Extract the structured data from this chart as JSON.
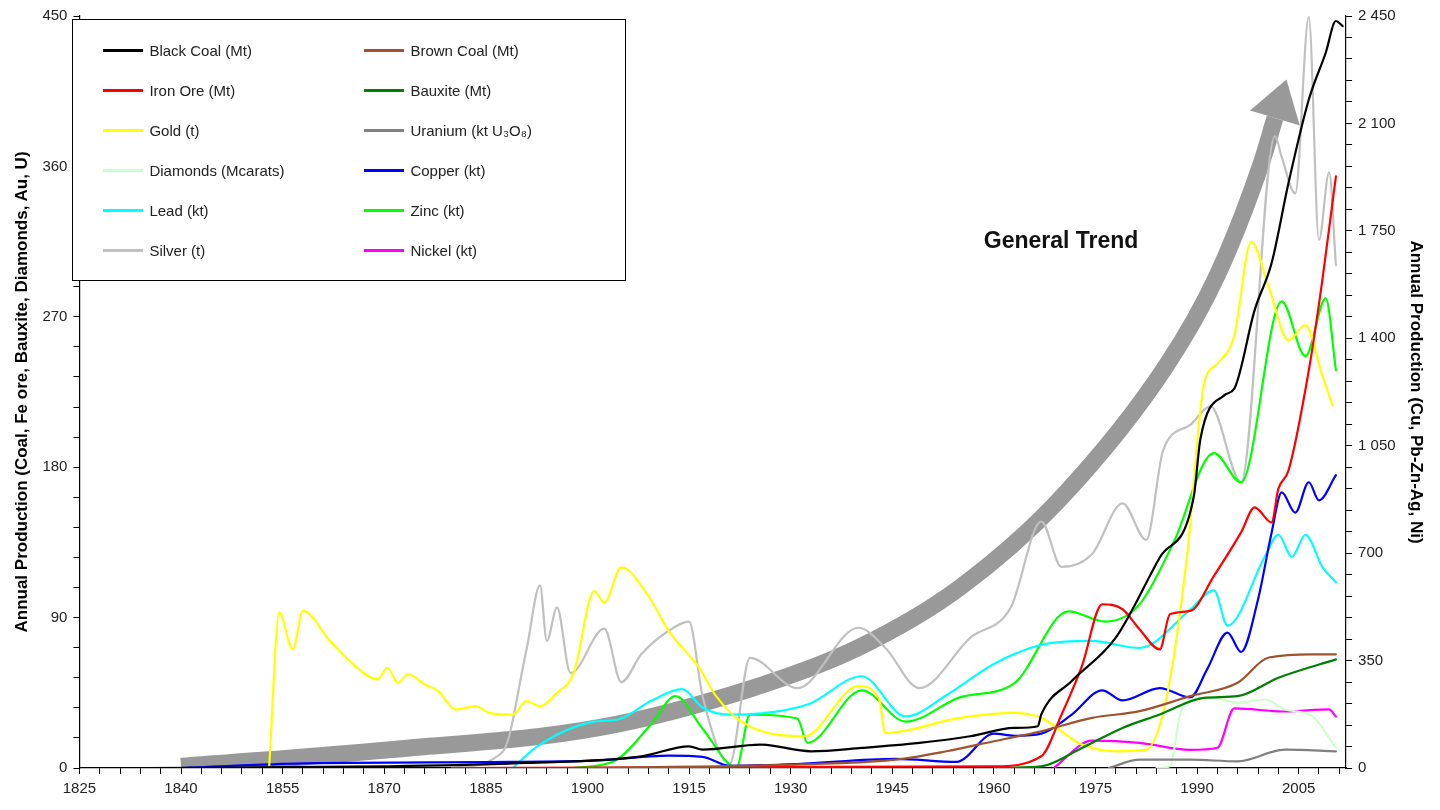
{
  "chart_data": {
    "type": "line",
    "ylabel": "Annual Production (Coal, Fe ore, Bauxite, Diamonds, Au, U)",
    "y2label": "Annual Production (Cu, Pb-Zn-Ag, Ni)",
    "annotations": [
      "General Trend"
    ],
    "legend": "top left",
    "marker": "none",
    "line_style": "solid",
    "xlim": [
      1825,
      2012
    ],
    "ylim": [
      0,
      450
    ],
    "y2lim": [
      0,
      2450
    ],
    "xticks": [
      1825,
      {
        "value": 1828,
        "label": null
      },
      {
        "value": 1831,
        "label": null
      },
      {
        "value": 1834,
        "label": null
      },
      {
        "value": 1837,
        "label": null
      },
      1840,
      {
        "value": 1843,
        "label": null
      },
      {
        "value": 1846,
        "label": null
      },
      {
        "value": 1849,
        "label": null
      },
      {
        "value": 1852,
        "label": null
      },
      1855,
      {
        "value": 1858,
        "label": null
      },
      {
        "value": 1861,
        "label": null
      },
      {
        "value": 1864,
        "label": null
      },
      {
        "value": 1867,
        "label": null
      },
      1870,
      {
        "value": 1873,
        "label": null
      },
      {
        "value": 1876,
        "label": null
      },
      {
        "value": 1879,
        "label": null
      },
      {
        "value": 1882,
        "label": null
      },
      1885,
      {
        "value": 1888,
        "label": null
      },
      {
        "value": 1891,
        "label": null
      },
      {
        "value": 1894,
        "label": null
      },
      {
        "value": 1897,
        "label": null
      },
      1900,
      {
        "value": 1903,
        "label": null
      },
      {
        "value": 1906,
        "label": null
      },
      {
        "value": 1909,
        "label": null
      },
      {
        "value": 1912,
        "label": null
      },
      1915,
      {
        "value": 1918,
        "label": null
      },
      {
        "value": 1921,
        "label": null
      },
      {
        "value": 1924,
        "label": null
      },
      {
        "value": 1927,
        "label": null
      },
      1930,
      {
        "value": 1933,
        "label": null
      },
      {
        "value": 1936,
        "label": null
      },
      {
        "value": 1939,
        "label": null
      },
      {
        "value": 1942,
        "label": null
      },
      1945,
      {
        "value": 1948,
        "label": null
      },
      {
        "value": 1951,
        "label": null
      },
      {
        "value": 1954,
        "label": null
      },
      {
        "value": 1957,
        "label": null
      },
      1960,
      {
        "value": 1963,
        "label": null
      },
      {
        "value": 1966,
        "label": null
      },
      {
        "value": 1969,
        "label": null
      },
      {
        "value": 1972,
        "label": null
      },
      1975,
      {
        "value": 1978,
        "label": null
      },
      {
        "value": 1981,
        "label": null
      },
      {
        "value": 1984,
        "label": null
      },
      {
        "value": 1987,
        "label": null
      },
      1990,
      {
        "value": 1993,
        "label": null
      },
      {
        "value": 1996,
        "label": null
      },
      {
        "value": 1999,
        "label": null
      },
      {
        "value": 2002,
        "label": null
      },
      2005,
      {
        "value": 2008,
        "label": null
      },
      {
        "value": 2011,
        "label": null
      }
    ],
    "yticks": [
      0,
      {
        "value": 18,
        "label": null
      },
      {
        "value": 36,
        "label": null
      },
      {
        "value": 54,
        "label": null
      },
      {
        "value": 72,
        "label": null
      },
      90,
      {
        "value": 108,
        "label": null
      },
      {
        "value": 126,
        "label": null
      },
      {
        "value": 144,
        "label": null
      },
      {
        "value": 162,
        "label": null
      },
      180,
      {
        "value": 198,
        "label": null
      },
      {
        "value": 216,
        "label": null
      },
      {
        "value": 234,
        "label": null
      },
      {
        "value": 252,
        "label": null
      },
      270,
      {
        "value": 288,
        "label": null
      },
      {
        "value": 306,
        "label": null
      },
      {
        "value": 324,
        "label": null
      },
      {
        "value": 342,
        "label": null
      },
      360,
      {
        "value": 378,
        "label": null
      },
      {
        "value": 396,
        "label": null
      },
      {
        "value": 414,
        "label": null
      },
      {
        "value": 432,
        "label": null
      },
      450
    ],
    "y2ticks": [
      0,
      {
        "value": 70,
        "label": null
      },
      {
        "value": 140,
        "label": null
      },
      {
        "value": 210,
        "label": null
      },
      {
        "value": 280,
        "label": null
      },
      350,
      {
        "value": 420,
        "label": null
      },
      {
        "value": 490,
        "label": null
      },
      {
        "value": 560,
        "label": null
      },
      {
        "value": 630,
        "label": null
      },
      700,
      {
        "value": 770,
        "label": null
      },
      {
        "value": 840,
        "label": null
      },
      {
        "value": 910,
        "label": null
      },
      {
        "value": 980,
        "label": null
      },
      {
        "value": 1050,
        "label": "1 050"
      },
      {
        "value": 1120,
        "label": null
      },
      {
        "value": 1190,
        "label": null
      },
      {
        "value": 1260,
        "label": null
      },
      {
        "value": 1330,
        "label": null
      },
      {
        "value": 1400,
        "label": "1 400"
      },
      {
        "value": 1470,
        "label": null
      },
      {
        "value": 1540,
        "label": null
      },
      {
        "value": 1610,
        "label": null
      },
      {
        "value": 1680,
        "label": null
      },
      {
        "value": 1750,
        "label": "1 750"
      },
      {
        "value": 1820,
        "label": null
      },
      {
        "value": 1890,
        "label": null
      },
      {
        "value": 1960,
        "label": null
      },
      {
        "value": 2030,
        "label": null
      },
      {
        "value": 2100,
        "label": "2 100"
      },
      {
        "value": 2170,
        "label": null
      },
      {
        "value": 2240,
        "label": null
      },
      {
        "value": 2310,
        "label": null
      },
      {
        "value": 2380,
        "label": null
      },
      {
        "value": 2450,
        "label": "2 450"
      }
    ],
    "series": [
      {
        "name": "Black Coal (Mt)",
        "color": "#000000",
        "x": [
          1835,
          1870,
          1891,
          1908,
          1915,
          1917,
          1925.5,
          1933,
          1940.5,
          1949,
          1956.5,
          1963,
          1966.5,
          1967,
          1971.5,
          1978,
          1984.5,
          1989.5,
          1990.5,
          1994,
          1995.5,
          1998.5,
          2001,
          2003.5,
          2006.5,
          2009,
          2010.5,
          2011.5
        ],
        "values": [
          0,
          1,
          3,
          7,
          13,
          11,
          14,
          10,
          12,
          15,
          19,
          24,
          25,
          32,
          52,
          78,
          126,
          162,
          197,
          223,
          227,
          274,
          302,
          350,
          400,
          428,
          447,
          444
        ]
      },
      {
        "name": "Brown Coal (Mt)",
        "color": "#a0522d",
        "x": [
          1900,
          1930,
          1945.5,
          1953,
          1960,
          1967,
          1974.5,
          1981.5,
          1989,
          1996,
          2000.5,
          2007,
          2010.5
        ],
        "values": [
          0,
          2,
          5,
          10,
          16,
          22,
          30,
          34,
          43,
          51,
          66,
          68,
          68
        ]
      },
      {
        "name": "Iron Ore (Mt)",
        "color": "#ff0000",
        "x": [
          1880,
          1960,
          1967,
          1970,
          1973,
          1976,
          1979,
          1981.5,
          1984.5,
          1986,
          1989,
          1992.5,
          1996.5,
          1998.5,
          2001,
          2002,
          2003.5,
          2006.5,
          2008.5,
          2010.5
        ],
        "values": [
          0,
          1,
          7,
          32,
          61,
          98,
          95,
          83,
          71,
          92,
          94,
          115,
          141,
          156,
          147,
          167,
          178,
          238,
          292,
          354
        ]
      },
      {
        "name": "Bauxite (Mt)",
        "color": "#008000",
        "x": [
          1960,
          1967,
          1973,
          1979,
          1984.5,
          1991,
          1996,
          2002,
          2010.5
        ],
        "values": [
          0,
          1,
          12,
          24,
          32,
          42,
          43,
          54,
          65
        ]
      },
      {
        "name": "Gold (t)",
        "color": "#ffff00",
        "x": [
          1853,
          1854.5,
          1856.5,
          1858,
          1862,
          1866,
          1869,
          1870.5,
          1872,
          1873.5,
          1876,
          1878,
          1880.5,
          1883.5,
          1885.5,
          1889,
          1891,
          1893,
          1895.5,
          1898,
          1901,
          1902.5,
          1905,
          1909,
          1912,
          1916.5,
          1919,
          1923,
          1932,
          1940,
          1943,
          1944,
          1955,
          1963,
          1967,
          1973,
          1978,
          1982.5,
          1985.5,
          1988.5,
          1991,
          1993,
          1995.5,
          1998,
          2000.5,
          2003.5,
          2006,
          2008.5,
          2010
        ],
        "values": [
          0,
          93,
          71,
          94,
          76,
          60,
          53,
          60,
          51,
          56,
          50,
          46,
          35,
          37,
          33,
          32,
          40,
          37,
          45,
          57,
          106,
          99,
          120,
          103,
          82,
          60,
          43,
          27,
          19,
          49,
          42,
          21,
          30,
          33,
          30,
          14,
          10,
          11,
          42,
          126,
          229,
          242,
          259,
          315,
          289,
          256,
          265,
          235,
          217
        ]
      },
      {
        "name": "Uranium (kt U₃O₈)",
        "color": "#808080",
        "x": [
          1977,
          1981.5,
          1989,
          1996,
          2003,
          2010.5
        ],
        "values": [
          0,
          5,
          5,
          4,
          11,
          10
        ]
      },
      {
        "name": "Diamonds (Mcarats)",
        "color": "#ccffcc",
        "x": [
          1984,
          1986,
          1987.5,
          1989,
          1992.5,
          1996,
          2000,
          2003,
          2007,
          2010.5
        ],
        "values": [
          0,
          1,
          32,
          41,
          42,
          39,
          41,
          35,
          31,
          12
        ]
      },
      {
        "name": "Copper (kt)",
        "color": "#0000ff",
        "axis": "y2",
        "x": [
          1840,
          1860,
          1900,
          1912,
          1917,
          1921,
          1931,
          1945.5,
          1954.5,
          1960,
          1963,
          1967,
          1971.5,
          1976,
          1979,
          1984.5,
          1989,
          1991.5,
          1994.5,
          1996.5,
          1999,
          2001,
          2002.5,
          2004.5,
          2006.5,
          2008,
          2010.5
        ],
        "values": [
          0,
          16,
          23,
          40,
          36,
          7,
          13,
          30,
          20,
          112,
          105,
          112,
          174,
          253,
          220,
          260,
          230,
          322,
          441,
          378,
          549,
          766,
          898,
          832,
          931,
          872,
          954
        ]
      },
      {
        "name": "Lead (kt)",
        "color": "#00ffff",
        "axis": "y2",
        "x": [
          1889,
          1892.5,
          1901,
          1904.5,
          1909.5,
          1914,
          1917,
          1921,
          1932.5,
          1940.5,
          1947,
          1953,
          1960,
          1967,
          1974.5,
          1981.5,
          1989,
          1992.5,
          1994.5,
          2000,
          2002,
          2004,
          2006,
          2008.5,
          2010.5
        ],
        "values": [
          0,
          69,
          151,
          158,
          220,
          257,
          197,
          174,
          207,
          299,
          168,
          237,
          339,
          401,
          414,
          391,
          516,
          579,
          464,
          688,
          760,
          688,
          760,
          655,
          605
        ]
      },
      {
        "name": "Zinc (kt)",
        "color": "#00ff00",
        "axis": "y2",
        "x": [
          1898,
          1904,
          1909.5,
          1913,
          1917,
          1922,
          1924,
          1931,
          1932.5,
          1940.5,
          1947,
          1955,
          1963,
          1971,
          1976.5,
          1981.5,
          1986.5,
          1992.5,
          1996.5,
          2002.5,
          2006,
          2009,
          2010.5
        ],
        "values": [
          0,
          23,
          145,
          234,
          128,
          3,
          174,
          161,
          82,
          253,
          151,
          230,
          276,
          510,
          477,
          533,
          733,
          1026,
          931,
          1520,
          1342,
          1530,
          1296
        ]
      },
      {
        "name": "Silver (t)",
        "color": "#c0c0c0",
        "axis": "y2",
        "x": [
          1880,
          1887.5,
          1891,
          1893,
          1894,
          1895.5,
          1897.5,
          1902.5,
          1905,
          1908,
          1913,
          1915,
          1917,
          1921,
          1924,
          1931,
          1940,
          1944,
          1949,
          1956.5,
          1962.5,
          1967,
          1970,
          1974.5,
          1979,
          1982.5,
          1985,
          1989,
          1992,
          1996.5,
          2001.5,
          2002.5,
          2004.5,
          2006.5,
          2008,
          2009.5,
          2010.5
        ],
        "values": [
          0,
          53,
          385,
          595,
          414,
          523,
          309,
          454,
          280,
          372,
          461,
          477,
          234,
          13,
          359,
          260,
          457,
          391,
          260,
          424,
          523,
          803,
          655,
          697,
          862,
          743,
          1036,
          1118,
          1178,
          931,
          2059,
          1990,
          1872,
          2447,
          1720,
          1941,
          1638
        ]
      },
      {
        "name": "Nickel (kt)",
        "color": "#ff00ff",
        "axis": "y2",
        "x": [
          1969,
          1974.5,
          1981.5,
          1989,
          1993,
          1995.5,
          2003,
          2009.5,
          2010.5
        ],
        "values": [
          3,
          89,
          82,
          59,
          66,
          194,
          184,
          191,
          168
        ]
      },
      {
        "color": "#999999",
        "x": [
          1840,
          1871,
          1901.5,
          1924.5,
          1940,
          1955,
          1970,
          1985.5,
          1993,
          1999.5,
          2001.5
        ],
        "values": [
          1,
          11,
          24,
          48,
          72,
          108,
          162,
          241,
          295,
          362,
          389
        ]
      }
    ]
  }
}
